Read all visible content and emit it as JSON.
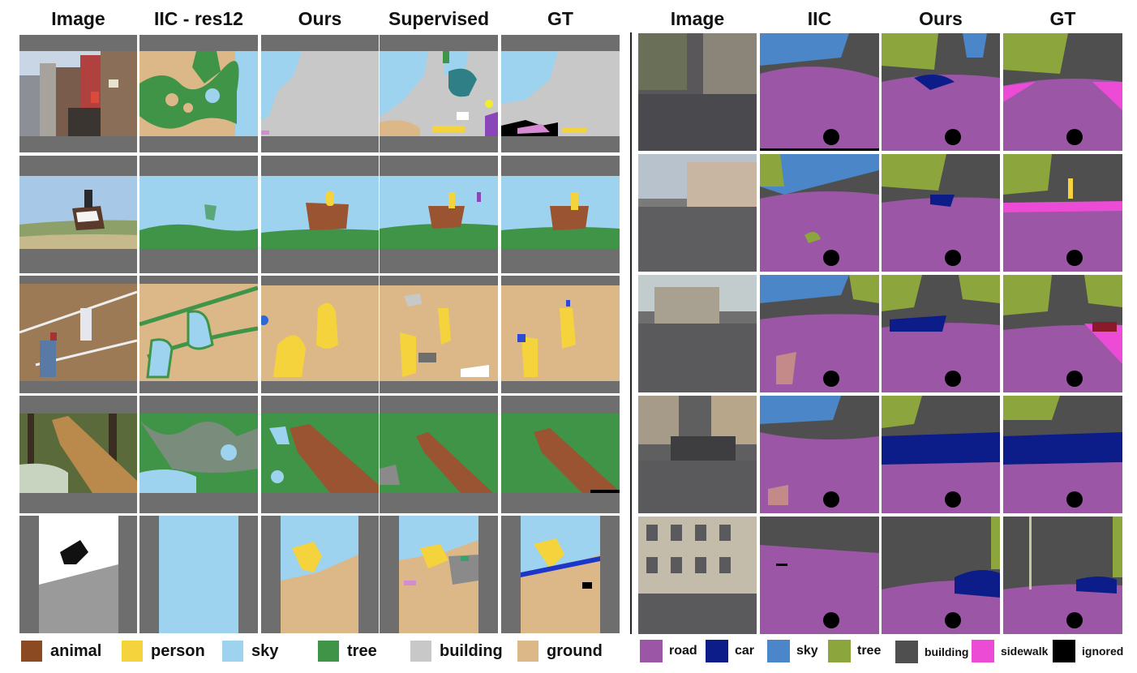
{
  "left_panel": {
    "headers": [
      "Image",
      "IIC - res12",
      "Ours",
      "Supervised",
      "GT"
    ]
  },
  "right_panel": {
    "headers": [
      "Image",
      "IIC",
      "Ours",
      "GT"
    ]
  },
  "left_legend": [
    {
      "label": "animal",
      "color": "#8b4a22"
    },
    {
      "label": "person",
      "color": "#f5d33c"
    },
    {
      "label": "sky",
      "color": "#9dd3ef"
    },
    {
      "label": "tree",
      "color": "#3f9447"
    },
    {
      "label": "building",
      "color": "#c8c8c8"
    },
    {
      "label": "ground",
      "color": "#dcb888"
    }
  ],
  "right_legend": [
    {
      "label": "road",
      "color": "#9b56a6"
    },
    {
      "label": "car",
      "color": "#0c1d8a"
    },
    {
      "label": "sky",
      "color": "#4a86c8"
    },
    {
      "label": "tree",
      "color": "#8da53d"
    },
    {
      "label": "building",
      "color": "#4f4f4f"
    },
    {
      "label": "sidewalk",
      "color": "#ec4bd6"
    },
    {
      "label": "ignored",
      "color": "#000000"
    }
  ]
}
